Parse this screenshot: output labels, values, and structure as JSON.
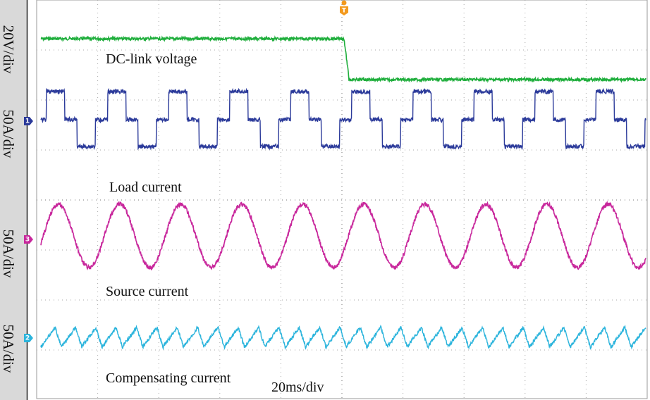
{
  "scales": [
    "20V/div",
    "50A/div",
    "50A/div",
    "50A/div"
  ],
  "traces": [
    "DC-link voltage",
    "Load current",
    "Source current",
    "Compensating current"
  ],
  "timebase": "20ms/div",
  "channel_markers": [
    "1",
    "3",
    "2"
  ],
  "trigger_marker": "T"
}
